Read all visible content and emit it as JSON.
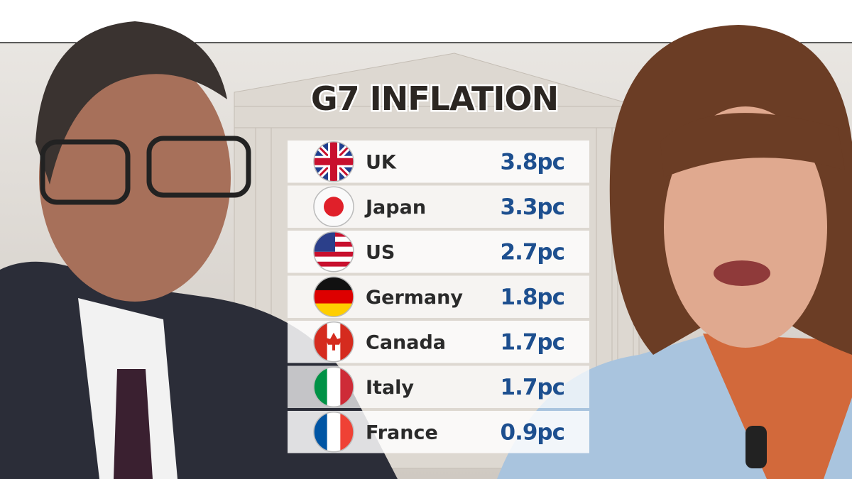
{
  "title": "G7 INFLATION",
  "table": {
    "rows": [
      [
        "UK",
        "3.8pc"
      ],
      [
        "Japan",
        "3.3pc"
      ],
      [
        "US",
        "2.7pc"
      ],
      [
        "Germany",
        "1.8pc"
      ],
      [
        "Canada",
        "1.7pc"
      ],
      [
        "Italy",
        "1.7pc"
      ],
      [
        "France",
        "0.9pc"
      ]
    ]
  }
}
